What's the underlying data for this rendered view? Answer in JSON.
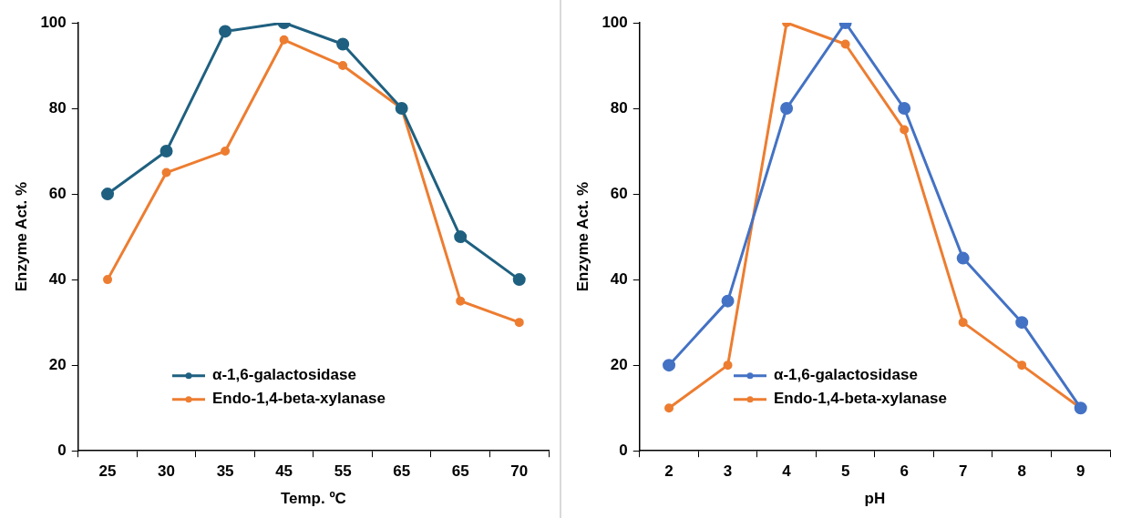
{
  "chart_data": [
    {
      "type": "line",
      "xlabel": "Temp. ºC",
      "ylabel": "Enzyme Act. %",
      "categories": [
        "25",
        "30",
        "35",
        "45",
        "55",
        "65",
        "65",
        "70"
      ],
      "series": [
        {
          "name": "α-1,6-galactosidase",
          "color": "#1f6080",
          "values": [
            60,
            70,
            98,
            100,
            95,
            80,
            50,
            40
          ]
        },
        {
          "name": "Endo-1,4-beta-xylanase",
          "color": "#ed7d31",
          "values": [
            40,
            65,
            70,
            96,
            90,
            80,
            35,
            30
          ]
        }
      ],
      "ylim": [
        0,
        100
      ],
      "yticks": [
        0,
        20,
        40,
        60,
        80,
        100
      ],
      "grid": false,
      "legend": "bottom left",
      "marker": "circle",
      "line_style": "solid"
    },
    {
      "type": "line",
      "xlabel": "pH",
      "ylabel": "Enzyme Act. %",
      "categories": [
        "2",
        "3",
        "4",
        "5",
        "6",
        "7",
        "8",
        "9"
      ],
      "series": [
        {
          "name": "α-1,6-galactosidase",
          "color": "#4472c4",
          "values": [
            20,
            35,
            80,
            100,
            80,
            45,
            30,
            10
          ]
        },
        {
          "name": "Endo-1,4-beta-xylanase",
          "color": "#ed7d31",
          "values": [
            10,
            20,
            100,
            95,
            75,
            30,
            20,
            10
          ]
        }
      ],
      "ylim": [
        0,
        100
      ],
      "yticks": [
        0,
        20,
        40,
        60,
        80,
        100
      ],
      "grid": false,
      "legend": "bottom left",
      "marker": "circle",
      "line_style": "solid"
    }
  ]
}
